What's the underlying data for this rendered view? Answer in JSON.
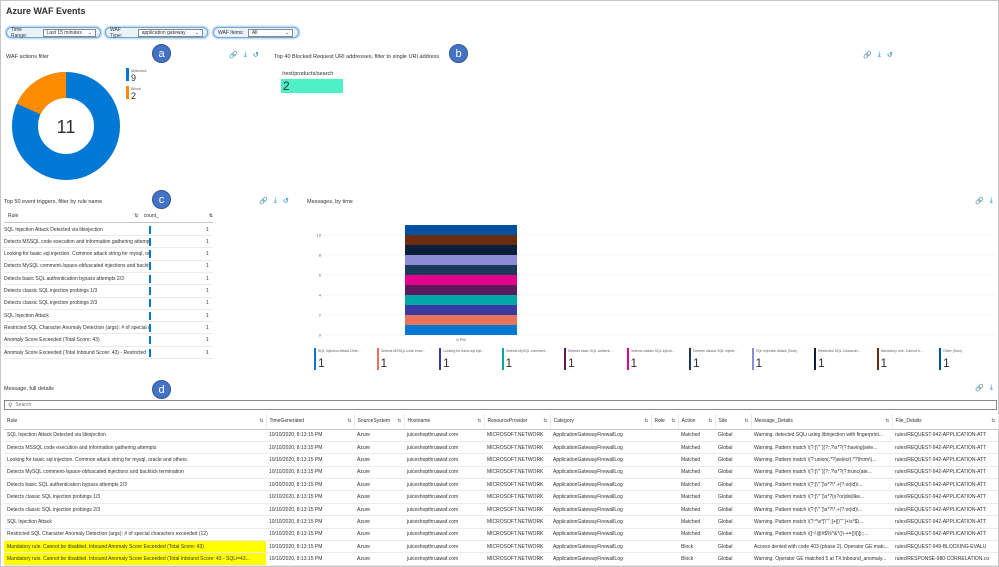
{
  "title": "Azure WAF Events",
  "params": [
    {
      "label": "Time Range:",
      "value": "Last 15 minutes"
    },
    {
      "label": "WAF Type:",
      "value": "application gateway"
    },
    {
      "label": "WAF Items:",
      "value": "All"
    }
  ],
  "badges": [
    "a",
    "b",
    "c",
    "d"
  ],
  "donut": {
    "title": "WAF actions filter",
    "total": "11",
    "items": [
      {
        "label": "Matched",
        "value": "9",
        "color": "#0078d4"
      },
      {
        "label": "Block",
        "value": "2",
        "color": "#ff8c00"
      }
    ]
  },
  "uri": {
    "title": "Top 40 Blocked Request URI addresses, filter to single URI address",
    "path": "/rest/products/search",
    "count": "2",
    "color": "#4ef0c8"
  },
  "rules": {
    "title": "Top 50 event triggers, filter by rule name",
    "col_rule": "Rule",
    "col_count": "count_",
    "rows": [
      {
        "name": "SQL Injection Attack Detected via libinjection",
        "count": "1"
      },
      {
        "name": "Detects MSSQL code execution and information gathering attempts",
        "count": "1"
      },
      {
        "name": "Looking for basic sql injection. Common attack string for mysql, oracle and others.",
        "count": "1"
      },
      {
        "name": "Detects MySQL comment-/space-obfuscated injections and backtick termination",
        "count": "1"
      },
      {
        "name": "Detects basic SQL authentication bypass attempts 2/3",
        "count": "1"
      },
      {
        "name": "Detects classic SQL injection probings 1/3",
        "count": "1"
      },
      {
        "name": "Detects classic SQL injection probings 2/3",
        "count": "1"
      },
      {
        "name": "SQL Injection Attack",
        "count": "1"
      },
      {
        "name": "Restricted SQL Character Anomaly Detection (args): # of special characters exceeded (12)",
        "count": "1"
      },
      {
        "name": "Anomaly Score Exceeded (Total Score: 43)",
        "count": "1"
      },
      {
        "name": "Anomaly Score Exceeded (Total Inbound Score: 43) - Restricted",
        "count": "1"
      }
    ]
  },
  "messages_chart": {
    "title": "Messages, by time",
    "x_label": "8 PM",
    "y_ticks": [
      "10",
      "8",
      "6",
      "4",
      "2",
      "0"
    ],
    "chart_data": {
      "type": "bar",
      "categories": [
        "8 PM"
      ],
      "ylim": [
        0,
        12
      ],
      "series": [
        {
          "name": "SQL Injection Attack Dete...",
          "values": [
            1
          ],
          "color": "#0078d4"
        },
        {
          "name": "Detects MSSQL code exec...",
          "values": [
            1
          ],
          "color": "#e8735a"
        },
        {
          "name": "Looking for basic sql inje...",
          "values": [
            1
          ],
          "color": "#3a3aa0"
        },
        {
          "name": "Detects MySQL comment...",
          "values": [
            1
          ],
          "color": "#00a7a7"
        },
        {
          "name": "Detects basic SQL authent...",
          "values": [
            1
          ],
          "color": "#5b1a5b"
        },
        {
          "name": "Detects classic SQL injecti...",
          "values": [
            1
          ],
          "color": "#e3008c"
        },
        {
          "name": "Detects classic SQL injecti...",
          "values": [
            1
          ],
          "color": "#1a3a5c"
        },
        {
          "name": "SQL Injection Attack (Sum)",
          "values": [
            1
          ],
          "color": "#8e8cd8"
        },
        {
          "name": "Restricted SQL Character...",
          "values": [
            1
          ],
          "color": "#0b1f3a"
        },
        {
          "name": "Mandatory rule. Cannot b...",
          "values": [
            1
          ],
          "color": "#6b2d0f"
        },
        {
          "name": "Other (Sum)",
          "values": [
            1
          ],
          "color": "#0050a0"
        }
      ]
    }
  },
  "details": {
    "title": "Message, full details",
    "search_placeholder": "Search",
    "columns": [
      "Rule",
      "TimeGenerated",
      "SourceSystem",
      "Hostname",
      "ResourceProvider",
      "Category",
      "Role",
      "Action",
      "Site",
      "Message_Details",
      "File_Details"
    ],
    "rows": [
      [
        "SQL Injection Attack Detected via libinjection",
        "10/10/2020, 8:13:15 PM",
        "Azure",
        "juiceshopthruawaf.com",
        "MICROSOFT.NETWORK",
        "ApplicationGatewayFirewallLog",
        "",
        "Matched",
        "Global",
        "Warning. detected SQLi using libinjection with fingerprint...",
        "rules/REQUEST-942-APPLICATION-ATT"
      ],
      [
        "Detects MSSQL code execution and information gathering attempts",
        "10/10/2020, 8:13:15 PM",
        "Azure",
        "juiceshopthruawaf.com",
        "MICROSOFT.NETWORK",
        "ApplicationGatewayFirewallLog",
        "",
        "Matched",
        "Global",
        "Warning. Pattern match \\(?:[\\\"'`](?:;?\\s*?(?:having|sele...",
        "rules/REQUEST-942-APPLICATION-ATT"
      ],
      [
        "Looking for basic sql injection. Common attack string for mysql, oracle and others.",
        "10/10/2020, 8:13:15 PM",
        "Azure",
        "juiceshopthruawaf.com",
        "MICROSOFT.NETWORK",
        "ApplicationGatewayFirewallLog",
        "",
        "Matched",
        "Global",
        "Warning. Pattern match \\(?:union(.*?)select(.*?)from\\)...",
        "rules/REQUEST-942-APPLICATION-ATT"
      ],
      [
        "Detects MySQL comment-/space-obfuscated injections and backtick termination",
        "10/10/2020, 8:13:15 PM",
        "Azure",
        "juiceshopthruawaf.com",
        "MICROSOFT.NETWORK",
        "ApplicationGatewayFirewallLog",
        "",
        "Matched",
        "Global",
        "Warning. Pattern match \\(?:[\\\"'`](?:;?\\s*?(?:trunc(ate...",
        "rules/REQUEST-942-APPLICATION-ATT"
      ],
      [
        "Detects basic SQL authentication bypass attempts 2/3",
        "10/10/2020, 8:13:15 PM",
        "Azure",
        "juiceshopthruawaf.com",
        "MICROSOFT.NETWORK",
        "ApplicationGatewayFirewallLog",
        "",
        "Matched",
        "Global",
        "Warning. Pattern match \\(?:[\\\"'`]\\s*?\\*.+(?:or|id)\\...",
        "rules/REQUEST-942-APPLICATION-ATT"
      ],
      [
        "Detects classic SQL injection probings 1/3",
        "10/10/2020, 8:13:15 PM",
        "Azure",
        "juiceshopthruawaf.com",
        "MICROSOFT.NETWORK",
        "ApplicationGatewayFirewallLog",
        "",
        "Matched",
        "Global",
        "Warning. Pattern match \\(?:[\\\"'`]\\s*?(x?or|div|like...",
        "rules/REQUEST-942-APPLICATION-ATT"
      ],
      [
        "Detects classic SQL injection probings 2/3",
        "10/10/2020, 8:13:15 PM",
        "Azure",
        "juiceshopthruawaf.com",
        "MICROSOFT.NETWORK",
        "ApplicationGatewayFirewallLog",
        "",
        "Matched",
        "Global",
        "Warning. Pattern match \\(?:[\\\"'`]\\s*?\\*.+(?:or|id)\\...",
        "rules/REQUEST-942-APPLICATION-ATT"
      ],
      [
        "SQL Injection Attack",
        "10/10/2020, 8:13:15 PM",
        "Azure",
        "juiceshopthruawaf.com",
        "MICROSOFT.NETWORK",
        "ApplicationGatewayFirewallLog",
        "",
        "Matched",
        "Global",
        "Warning. Pattern match \\(?:^\\s*[\\\"'`;]+|[\\\"'`]+\\s*$)...",
        "rules/REQUEST-942-APPLICATION-ATT"
      ],
      [
        "Restricted SQL Character Anomaly Detection (args): # of special characters exceeded (12)",
        "10/10/2020, 8:13:15 PM",
        "Azure",
        "juiceshopthruawaf.com",
        "MICROSOFT.NETWORK",
        "ApplicationGatewayFirewallLog",
        "",
        "Matched",
        "Global",
        "Warning. Pattern match \\([~!@#$%^&*()\\-+={}\\[\\]|:;...",
        "rules/REQUEST-942-APPLICATION-ATT"
      ],
      [
        "Mandatory rule. Cannot be disabled. Inbound Anomaly Score Exceeded (Total Score: 43)",
        "10/10/2020, 8:13:15 PM",
        "Azure",
        "juiceshopthruawaf.com",
        "MICROSOFT.NETWORK",
        "ApplicationGatewayFirewallLog",
        "",
        "Block",
        "Global",
        "Access denied with code 403 (phase 2). Operator GE matc...",
        "rules/REQUEST-949-BLOCKING-EVALU"
      ],
      [
        "Mandatory rule. Cannot be disabled. Inbound Anomaly Score Exceeded (Total Inbound Score: 43 - SQLi=43...",
        "10/10/2020, 8:13:15 PM",
        "Azure",
        "juiceshopthruawaf.com",
        "MICROSOFT.NETWORK",
        "ApplicationGatewayFirewallLog",
        "",
        "Block",
        "Global",
        "Warning. Operator GE matched 5 at TX:inbound_anomaly...",
        "rules/RESPONSE-980-CORRELATION.co"
      ]
    ],
    "highlight_rows": [
      9,
      10
    ]
  }
}
